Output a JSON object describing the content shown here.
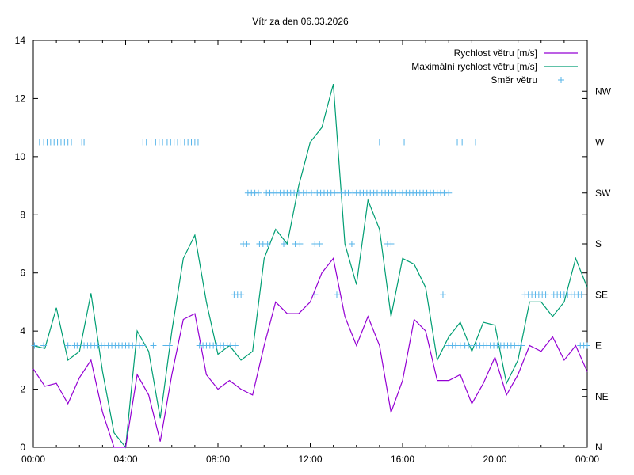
{
  "chart_data": {
    "type": "line",
    "title": "Vítr za den 06.03.2026",
    "xlabel": "",
    "ylabel": "",
    "xlim": [
      0,
      24
    ],
    "ylim": [
      0,
      14
    ],
    "y2lim": [
      0,
      8
    ],
    "x_tick_values": [
      0,
      4,
      8,
      12,
      16,
      20,
      24
    ],
    "x_tick_labels": [
      "00:00",
      "04:00",
      "08:00",
      "12:00",
      "16:00",
      "20:00",
      "00:00"
    ],
    "y_tick_labels": [
      "0",
      "2",
      "4",
      "6",
      "8",
      "10",
      "12",
      "14"
    ],
    "y2_tick_labels": [
      "N",
      "NE",
      "E",
      "SE",
      "S",
      "SW",
      "W",
      "NW"
    ],
    "grid": false,
    "legend_position": "top-right",
    "colors": {
      "speed": "#9400d3",
      "max": "#009e73",
      "dir": "#56b4e9"
    },
    "x": [
      0,
      0.5,
      1,
      1.5,
      2,
      2.5,
      3,
      3.5,
      4,
      4.5,
      5,
      5.5,
      6,
      6.5,
      7,
      7.5,
      8,
      8.5,
      9,
      9.5,
      10,
      10.5,
      11,
      11.5,
      12,
      12.5,
      13,
      13.5,
      14,
      14.5,
      15,
      15.5,
      16,
      16.5,
      17,
      17.5,
      18,
      18.5,
      19,
      19.5,
      20,
      20.5,
      21,
      21.5,
      22,
      22.5,
      23,
      23.5,
      24
    ],
    "series": [
      {
        "name": "Rychlost větru [m/s]",
        "values": [
          2.7,
          2.1,
          2.2,
          1.5,
          2.4,
          3.0,
          1.2,
          0,
          0,
          2.5,
          1.8,
          0.2,
          2.5,
          4.4,
          4.6,
          2.5,
          2.0,
          2.3,
          2.0,
          1.8,
          3.5,
          5.0,
          4.6,
          4.6,
          5.0,
          6.0,
          6.5,
          4.5,
          3.5,
          4.5,
          3.5,
          1.2,
          2.3,
          4.4,
          4.0,
          2.3,
          2.3,
          2.5,
          1.5,
          2.2,
          3.1,
          1.8,
          2.5,
          3.5,
          3.3,
          3.8,
          3.0,
          3.5,
          2.6
        ]
      },
      {
        "name": "Maximální rychlost větru [m/s]",
        "values": [
          3.5,
          3.4,
          4.8,
          3.0,
          3.3,
          5.3,
          2.6,
          0.5,
          0,
          4.0,
          3.3,
          1.0,
          4.0,
          6.5,
          7.3,
          5.0,
          3.2,
          3.5,
          3.0,
          3.3,
          6.5,
          7.5,
          7.0,
          9.0,
          10.5,
          11.0,
          12.5,
          7.0,
          5.6,
          8.5,
          7.5,
          4.5,
          6.5,
          6.3,
          5.5,
          3.0,
          3.8,
          4.3,
          3.3,
          4.3,
          4.2,
          2.2,
          3.0,
          5.0,
          5.0,
          4.5,
          5.0,
          6.5,
          5.5
        ]
      },
      {
        "name": "Směr větru",
        "type": "points",
        "points": {
          "W": [
            0.27,
            0.45,
            0.6,
            0.75,
            0.9,
            1.05,
            1.2,
            1.35,
            1.5,
            1.65,
            2.1,
            2.2,
            4.75,
            4.9,
            5.1,
            5.3,
            5.45,
            5.6,
            5.8,
            5.95,
            6.1,
            6.25,
            6.4,
            6.55,
            6.7,
            6.85,
            7.0,
            7.14,
            15.0,
            16.07,
            18.37,
            18.58,
            19.16
          ],
          "SW": [
            9.3,
            9.45,
            9.6,
            9.75,
            10.1,
            10.25,
            10.4,
            10.55,
            10.7,
            10.85,
            11.0,
            11.15,
            11.3,
            11.5,
            11.7,
            11.85,
            12.05,
            12.3,
            12.45,
            12.6,
            12.75,
            12.9,
            13.05,
            13.2,
            13.35,
            13.5,
            13.65,
            13.85,
            14.0,
            14.15,
            14.3,
            14.45,
            14.6,
            14.75,
            14.9,
            15.1,
            15.25,
            15.4,
            15.55,
            15.7,
            15.85,
            16.0,
            16.15,
            16.3,
            16.45,
            16.6,
            16.75,
            16.9,
            17.05,
            17.2,
            17.35,
            17.5,
            17.65,
            17.8,
            18.0
          ],
          "S": [
            9.1,
            9.25,
            9.8,
            9.95,
            10.15,
            10.85,
            11.35,
            11.55,
            12.2,
            12.4,
            13.8,
            15.35,
            15.5
          ],
          "SE": [
            8.7,
            8.85,
            9.0,
            12.2,
            13.15,
            17.75,
            21.3,
            21.45,
            21.6,
            21.75,
            21.9,
            22.05,
            22.2,
            22.55,
            22.7,
            22.85,
            23.0,
            23.15,
            23.3,
            23.45,
            23.6,
            23.75
          ],
          "E": [
            0.05,
            0.45,
            1.5,
            1.8,
            1.9,
            2.2,
            2.35,
            2.5,
            2.65,
            2.8,
            2.95,
            3.1,
            3.25,
            3.4,
            3.55,
            3.7,
            3.85,
            4.0,
            4.15,
            4.3,
            4.45,
            4.6,
            4.75,
            5.2,
            5.75,
            5.9,
            7.2,
            7.35,
            7.5,
            7.65,
            7.8,
            7.95,
            8.1,
            8.25,
            8.4,
            8.55,
            8.75,
            18.0,
            18.15,
            18.3,
            18.5,
            18.7,
            18.85,
            19.0,
            19.2,
            19.35,
            19.5,
            19.65,
            19.8,
            19.95,
            20.1,
            20.25,
            20.4,
            20.55,
            20.7,
            20.85,
            21.0,
            21.15,
            23.7,
            23.85,
            24.0
          ]
        }
      }
    ]
  }
}
